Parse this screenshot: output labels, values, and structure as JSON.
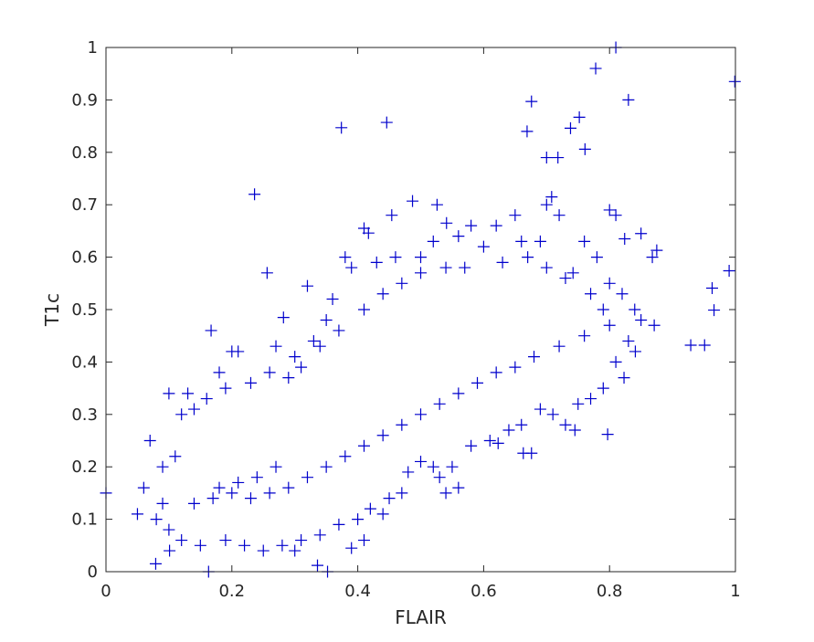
{
  "chart_data": {
    "type": "scatter",
    "xlabel": "FLAIR",
    "ylabel": "T1c",
    "xlim": [
      0,
      1
    ],
    "ylim": [
      0,
      1
    ],
    "xticks": [
      0,
      0.2,
      0.4,
      0.6,
      0.8,
      1
    ],
    "yticks": [
      0,
      0.1,
      0.2,
      0.3,
      0.4,
      0.5,
      0.6,
      0.7,
      0.8,
      0.9,
      1
    ],
    "xtick_labels": [
      "0",
      "0.2",
      "0.4",
      "0.6",
      "0.8",
      "1"
    ],
    "ytick_labels": [
      "0",
      "0.1",
      "0.2",
      "0.3",
      "0.4",
      "0.5",
      "0.6",
      "0.7",
      "0.8",
      "0.9",
      "1"
    ],
    "grid": false,
    "legend": false,
    "marker": "+",
    "marker_color": "#0000cc",
    "box_color": "#262626",
    "series": [
      {
        "points": [
          [
            0.0,
            0.15
          ],
          [
            0.81,
            1.0
          ],
          [
            0.999,
            0.935
          ],
          [
            0.778,
            0.96
          ],
          [
            0.676,
            0.897
          ],
          [
            0.83,
            0.9
          ],
          [
            0.446,
            0.857
          ],
          [
            0.374,
            0.847
          ],
          [
            0.669,
            0.84
          ],
          [
            0.752,
            0.867
          ],
          [
            0.738,
            0.846
          ],
          [
            0.761,
            0.806
          ],
          [
            0.7,
            0.79
          ],
          [
            0.718,
            0.79
          ],
          [
            0.236,
            0.72
          ],
          [
            0.7,
            0.7
          ],
          [
            0.708,
            0.715
          ],
          [
            0.487,
            0.707
          ],
          [
            0.526,
            0.7
          ],
          [
            0.81,
            0.68
          ],
          [
            0.8,
            0.69
          ],
          [
            0.99,
            0.574
          ],
          [
            0.963,
            0.541
          ],
          [
            0.929,
            0.432
          ],
          [
            0.951,
            0.432
          ],
          [
            0.966,
            0.499
          ],
          [
            0.797,
            0.262
          ],
          [
            0.676,
            0.226
          ],
          [
            0.663,
            0.226
          ],
          [
            0.352,
            0.0
          ],
          [
            0.163,
            0.0
          ],
          [
            0.079,
            0.015
          ],
          [
            0.336,
            0.012
          ],
          [
            0.101,
            0.04
          ],
          [
            0.167,
            0.46
          ],
          [
            0.256,
            0.57
          ],
          [
            0.282,
            0.485
          ],
          [
            0.32,
            0.545
          ],
          [
            0.41,
            0.655
          ],
          [
            0.417,
            0.646
          ],
          [
            0.454,
            0.68
          ],
          [
            0.541,
            0.665
          ],
          [
            0.58,
            0.66
          ],
          [
            0.65,
            0.68
          ],
          [
            0.72,
            0.68
          ],
          [
            0.742,
            0.57
          ],
          [
            0.824,
            0.635
          ],
          [
            0.85,
            0.645
          ],
          [
            0.875,
            0.613
          ],
          [
            0.868,
            0.6
          ],
          [
            0.871,
            0.47
          ],
          [
            0.841,
            0.42
          ],
          [
            0.823,
            0.37
          ],
          [
            0.745,
            0.27
          ],
          [
            0.73,
            0.28
          ],
          [
            0.623,
            0.245
          ],
          [
            0.5,
            0.21
          ],
          [
            0.56,
            0.16
          ],
          [
            0.54,
            0.15
          ],
          [
            0.48,
            0.19
          ],
          [
            0.44,
            0.11
          ],
          [
            0.41,
            0.06
          ],
          [
            0.39,
            0.045
          ],
          [
            0.3,
            0.04
          ],
          [
            0.25,
            0.04
          ],
          [
            0.05,
            0.11
          ],
          [
            0.06,
            0.16
          ],
          [
            0.07,
            0.25
          ],
          [
            0.09,
            0.2
          ],
          [
            0.1,
            0.34
          ],
          [
            0.13,
            0.34
          ],
          [
            0.2,
            0.42
          ],
          [
            0.21,
            0.42
          ],
          [
            0.18,
            0.38
          ],
          [
            0.27,
            0.43
          ],
          [
            0.3,
            0.41
          ],
          [
            0.33,
            0.44
          ],
          [
            0.35,
            0.48
          ],
          [
            0.36,
            0.52
          ],
          [
            0.38,
            0.6
          ],
          [
            0.39,
            0.58
          ],
          [
            0.43,
            0.59
          ],
          [
            0.46,
            0.6
          ],
          [
            0.5,
            0.6
          ],
          [
            0.52,
            0.63
          ],
          [
            0.56,
            0.64
          ],
          [
            0.6,
            0.62
          ],
          [
            0.62,
            0.66
          ],
          [
            0.66,
            0.63
          ],
          [
            0.69,
            0.63
          ],
          [
            0.76,
            0.63
          ],
          [
            0.78,
            0.6
          ],
          [
            0.8,
            0.55
          ],
          [
            0.82,
            0.53
          ],
          [
            0.84,
            0.5
          ],
          [
            0.85,
            0.48
          ],
          [
            0.83,
            0.44
          ],
          [
            0.81,
            0.4
          ],
          [
            0.79,
            0.35
          ],
          [
            0.77,
            0.33
          ],
          [
            0.75,
            0.32
          ],
          [
            0.71,
            0.3
          ],
          [
            0.69,
            0.31
          ],
          [
            0.66,
            0.28
          ],
          [
            0.64,
            0.27
          ],
          [
            0.61,
            0.25
          ],
          [
            0.58,
            0.24
          ],
          [
            0.55,
            0.2
          ],
          [
            0.53,
            0.18
          ],
          [
            0.52,
            0.2
          ],
          [
            0.47,
            0.15
          ],
          [
            0.45,
            0.14
          ],
          [
            0.42,
            0.12
          ],
          [
            0.4,
            0.1
          ],
          [
            0.37,
            0.09
          ],
          [
            0.34,
            0.07
          ],
          [
            0.31,
            0.06
          ],
          [
            0.28,
            0.05
          ],
          [
            0.22,
            0.05
          ],
          [
            0.19,
            0.06
          ],
          [
            0.15,
            0.05
          ],
          [
            0.12,
            0.06
          ],
          [
            0.1,
            0.08
          ],
          [
            0.08,
            0.1
          ],
          [
            0.09,
            0.13
          ],
          [
            0.11,
            0.22
          ],
          [
            0.12,
            0.3
          ],
          [
            0.14,
            0.31
          ],
          [
            0.16,
            0.33
          ],
          [
            0.19,
            0.35
          ],
          [
            0.23,
            0.36
          ],
          [
            0.26,
            0.38
          ],
          [
            0.29,
            0.37
          ],
          [
            0.31,
            0.39
          ],
          [
            0.34,
            0.43
          ],
          [
            0.37,
            0.46
          ],
          [
            0.41,
            0.5
          ],
          [
            0.44,
            0.53
          ],
          [
            0.47,
            0.55
          ],
          [
            0.5,
            0.57
          ],
          [
            0.54,
            0.58
          ],
          [
            0.57,
            0.58
          ],
          [
            0.63,
            0.59
          ],
          [
            0.67,
            0.6
          ],
          [
            0.7,
            0.58
          ],
          [
            0.73,
            0.56
          ],
          [
            0.77,
            0.53
          ],
          [
            0.79,
            0.5
          ],
          [
            0.8,
            0.47
          ],
          [
            0.76,
            0.45
          ],
          [
            0.72,
            0.43
          ],
          [
            0.68,
            0.41
          ],
          [
            0.65,
            0.39
          ],
          [
            0.62,
            0.38
          ],
          [
            0.59,
            0.36
          ],
          [
            0.56,
            0.34
          ],
          [
            0.53,
            0.32
          ],
          [
            0.5,
            0.3
          ],
          [
            0.47,
            0.28
          ],
          [
            0.44,
            0.26
          ],
          [
            0.41,
            0.24
          ],
          [
            0.38,
            0.22
          ],
          [
            0.35,
            0.2
          ],
          [
            0.32,
            0.18
          ],
          [
            0.29,
            0.16
          ],
          [
            0.26,
            0.15
          ],
          [
            0.23,
            0.14
          ],
          [
            0.2,
            0.15
          ],
          [
            0.17,
            0.14
          ],
          [
            0.14,
            0.13
          ],
          [
            0.18,
            0.16
          ],
          [
            0.21,
            0.17
          ],
          [
            0.24,
            0.18
          ],
          [
            0.27,
            0.2
          ]
        ]
      }
    ]
  }
}
